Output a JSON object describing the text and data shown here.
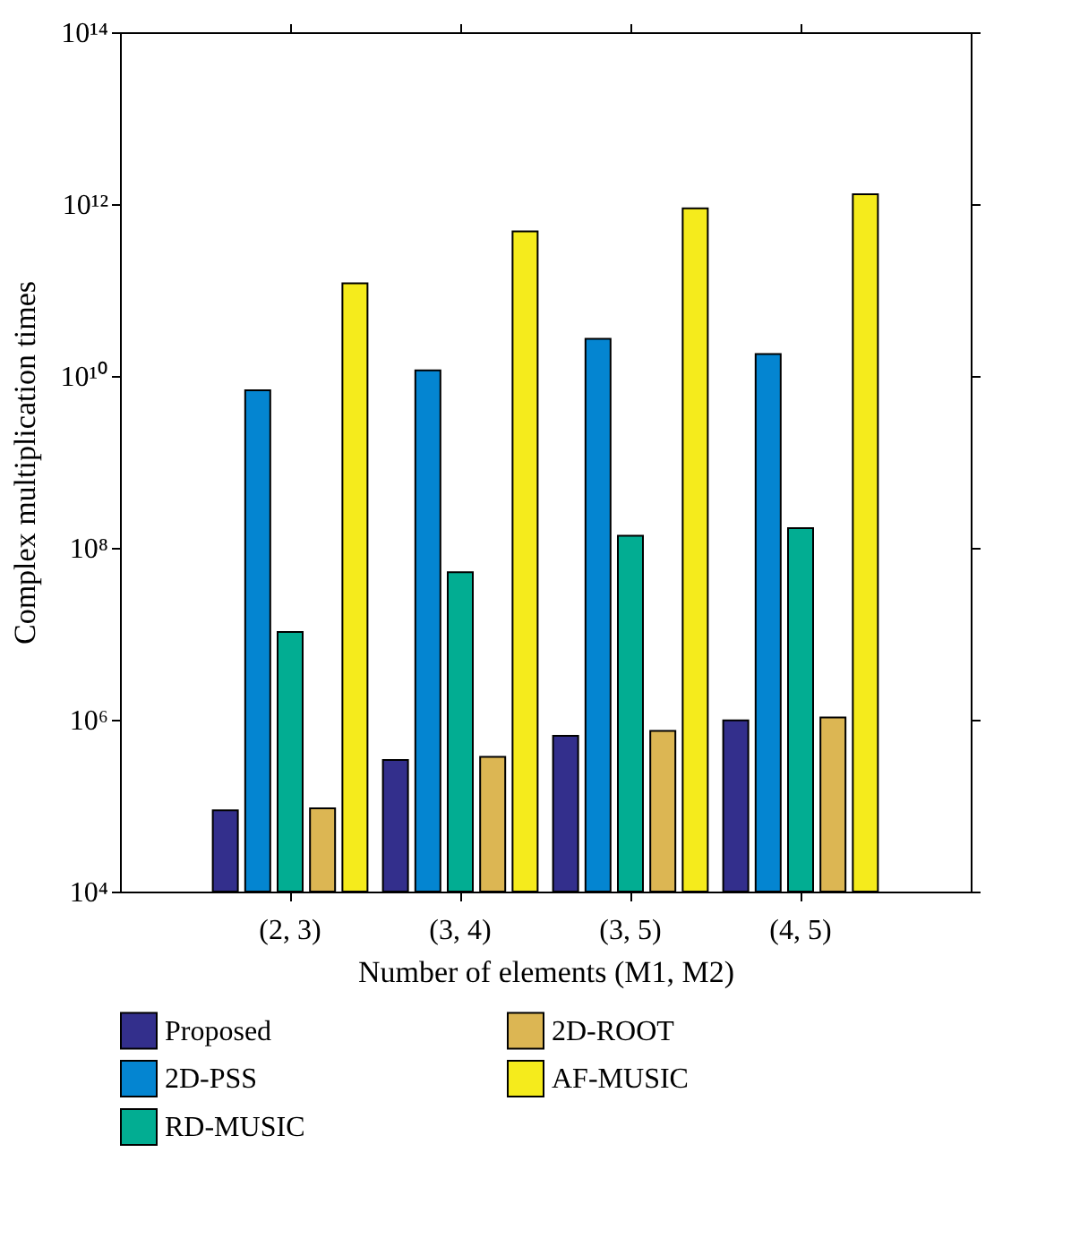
{
  "chart_data": {
    "type": "bar",
    "xlabel": "Number of elements (M1, M2)",
    "ylabel": "Complex multiplication times",
    "categories": [
      "(2, 3)",
      "(3, 4)",
      "(3, 5)",
      "(4, 5)"
    ],
    "series": [
      {
        "name": "Proposed",
        "color": "#332f8c",
        "values": [
          88000,
          340000,
          650000,
          980000
        ]
      },
      {
        "name": "2D-PSS",
        "color": "#0485d1",
        "values": [
          6800000000,
          11600000000,
          27000000000,
          18000000000
        ]
      },
      {
        "name": "RD-MUSIC",
        "color": "#02ad92",
        "values": [
          10500000,
          52000000,
          138000000,
          170000000
        ]
      },
      {
        "name": "2D-ROOT",
        "color": "#dcb653",
        "values": [
          93000,
          370000,
          740000,
          1060000
        ]
      },
      {
        "name": "AF-MUSIC",
        "color": "#f5eb1c",
        "values": [
          120000000000,
          480000000000,
          890000000000,
          1300000000000
        ]
      }
    ],
    "log": "y",
    "ylim": [
      10000,
      100000000000000
    ],
    "yticks": [
      {
        "value": 10000,
        "label": "10⁴"
      },
      {
        "value": 1000000,
        "label": "10⁶"
      },
      {
        "value": 100000000,
        "label": "10⁸"
      },
      {
        "value": 10000000000,
        "label": "10¹⁰"
      },
      {
        "value": 1000000000000,
        "label": "10¹²"
      },
      {
        "value": 100000000000000,
        "label": "10¹⁴"
      }
    ],
    "grid": false,
    "legend": "bottom"
  }
}
